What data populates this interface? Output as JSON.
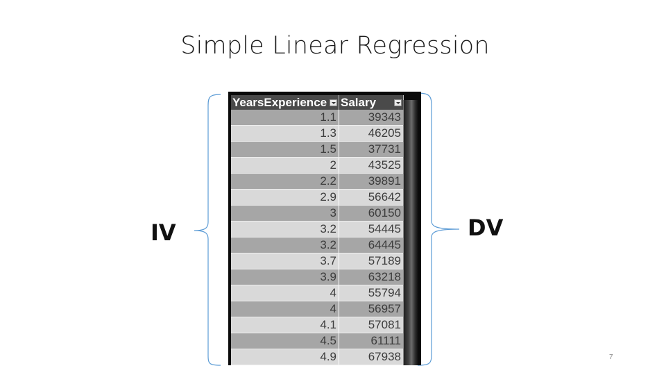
{
  "slide": {
    "title": "Simple Linear Regression",
    "iv_label": "IV",
    "dv_label": "DV",
    "page_number": "7"
  },
  "table": {
    "headers": [
      "YearsExperience",
      "Salary"
    ],
    "rows": [
      [
        "1.1",
        "39343"
      ],
      [
        "1.3",
        "46205"
      ],
      [
        "1.5",
        "37731"
      ],
      [
        "2",
        "43525"
      ],
      [
        "2.2",
        "39891"
      ],
      [
        "2.9",
        "56642"
      ],
      [
        "3",
        "60150"
      ],
      [
        "3.2",
        "54445"
      ],
      [
        "3.2",
        "64445"
      ],
      [
        "3.7",
        "57189"
      ],
      [
        "3.9",
        "63218"
      ],
      [
        "4",
        "55794"
      ],
      [
        "4",
        "56957"
      ],
      [
        "4.1",
        "57081"
      ],
      [
        "4.5",
        "61111"
      ],
      [
        "4.9",
        "67938"
      ]
    ]
  },
  "colors": {
    "brace": "#5b9bd5",
    "header_bg": "#4a4a4a",
    "row_dark": "#a6a6a6",
    "row_light": "#d9d9d9"
  }
}
